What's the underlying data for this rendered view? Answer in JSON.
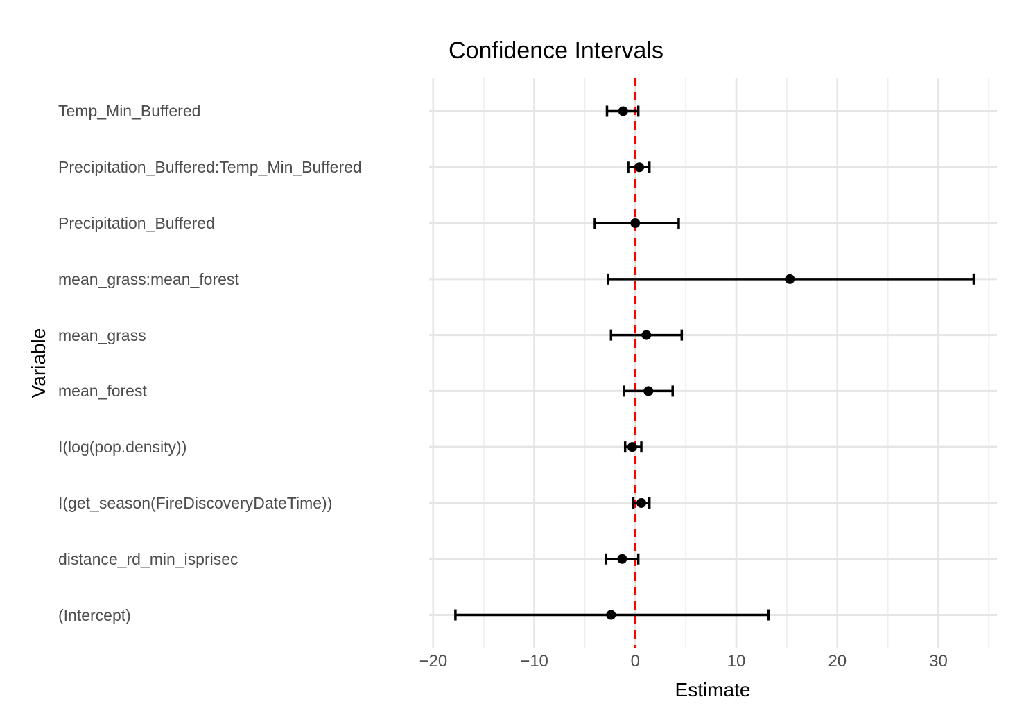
{
  "figure": {
    "title": "Confidence Intervals",
    "x_axis_title": "Estimate",
    "y_axis_title": "Variable"
  },
  "chart_data": {
    "type": "scatter",
    "subtype": "forest-plot-confidence-intervals",
    "title": "Confidence Intervals",
    "xlabel": "Estimate",
    "ylabel": "Variable",
    "xlim": [
      -20.4,
      35.8
    ],
    "grid": "on",
    "legend": "none",
    "reference_line_x": 0,
    "x_ticks": [
      {
        "label": "−20",
        "value": -20
      },
      {
        "label": "−10",
        "value": -10
      },
      {
        "label": "0",
        "value": 0
      },
      {
        "label": "10",
        "value": 10
      },
      {
        "label": "20",
        "value": 20
      },
      {
        "label": "30",
        "value": 30
      }
    ],
    "x_minor_ticks": [
      -15,
      -5,
      5,
      15,
      25,
      35
    ],
    "rows": [
      {
        "label": "Temp_Min_Buffered",
        "estimate": -1.2,
        "ci_low": -2.8,
        "ci_high": 0.3
      },
      {
        "label": "Precipitation_Buffered:Temp_Min_Buffered",
        "estimate": 0.4,
        "ci_low": -0.7,
        "ci_high": 1.4
      },
      {
        "label": "Precipitation_Buffered",
        "estimate": 0.0,
        "ci_low": -4.0,
        "ci_high": 4.3
      },
      {
        "label": "mean_grass:mean_forest",
        "estimate": 15.3,
        "ci_low": -2.7,
        "ci_high": 33.5
      },
      {
        "label": "mean_grass",
        "estimate": 1.1,
        "ci_low": -2.4,
        "ci_high": 4.6
      },
      {
        "label": "mean_forest",
        "estimate": 1.3,
        "ci_low": -1.1,
        "ci_high": 3.7
      },
      {
        "label": "I(log(pop.density))",
        "estimate": -0.3,
        "ci_low": -1.0,
        "ci_high": 0.6
      },
      {
        "label": "I(get_season(FireDiscoveryDateTime))",
        "estimate": 0.6,
        "ci_low": -0.2,
        "ci_high": 1.4
      },
      {
        "label": "distance_rd_min_isprisec",
        "estimate": -1.3,
        "ci_low": -2.9,
        "ci_high": 0.3
      },
      {
        "label": "(Intercept)",
        "estimate": -2.4,
        "ci_low": -17.8,
        "ci_high": 13.2
      }
    ]
  },
  "colors": {
    "point": "#000000",
    "errorbar": "#000000",
    "reference_line": "#FF0000",
    "grid_major": "#E5E5E5",
    "grid_minor": "#EFEFEF",
    "axis_text": "#4D4D4D",
    "title_text": "#000000",
    "background": "#FFFFFF"
  }
}
